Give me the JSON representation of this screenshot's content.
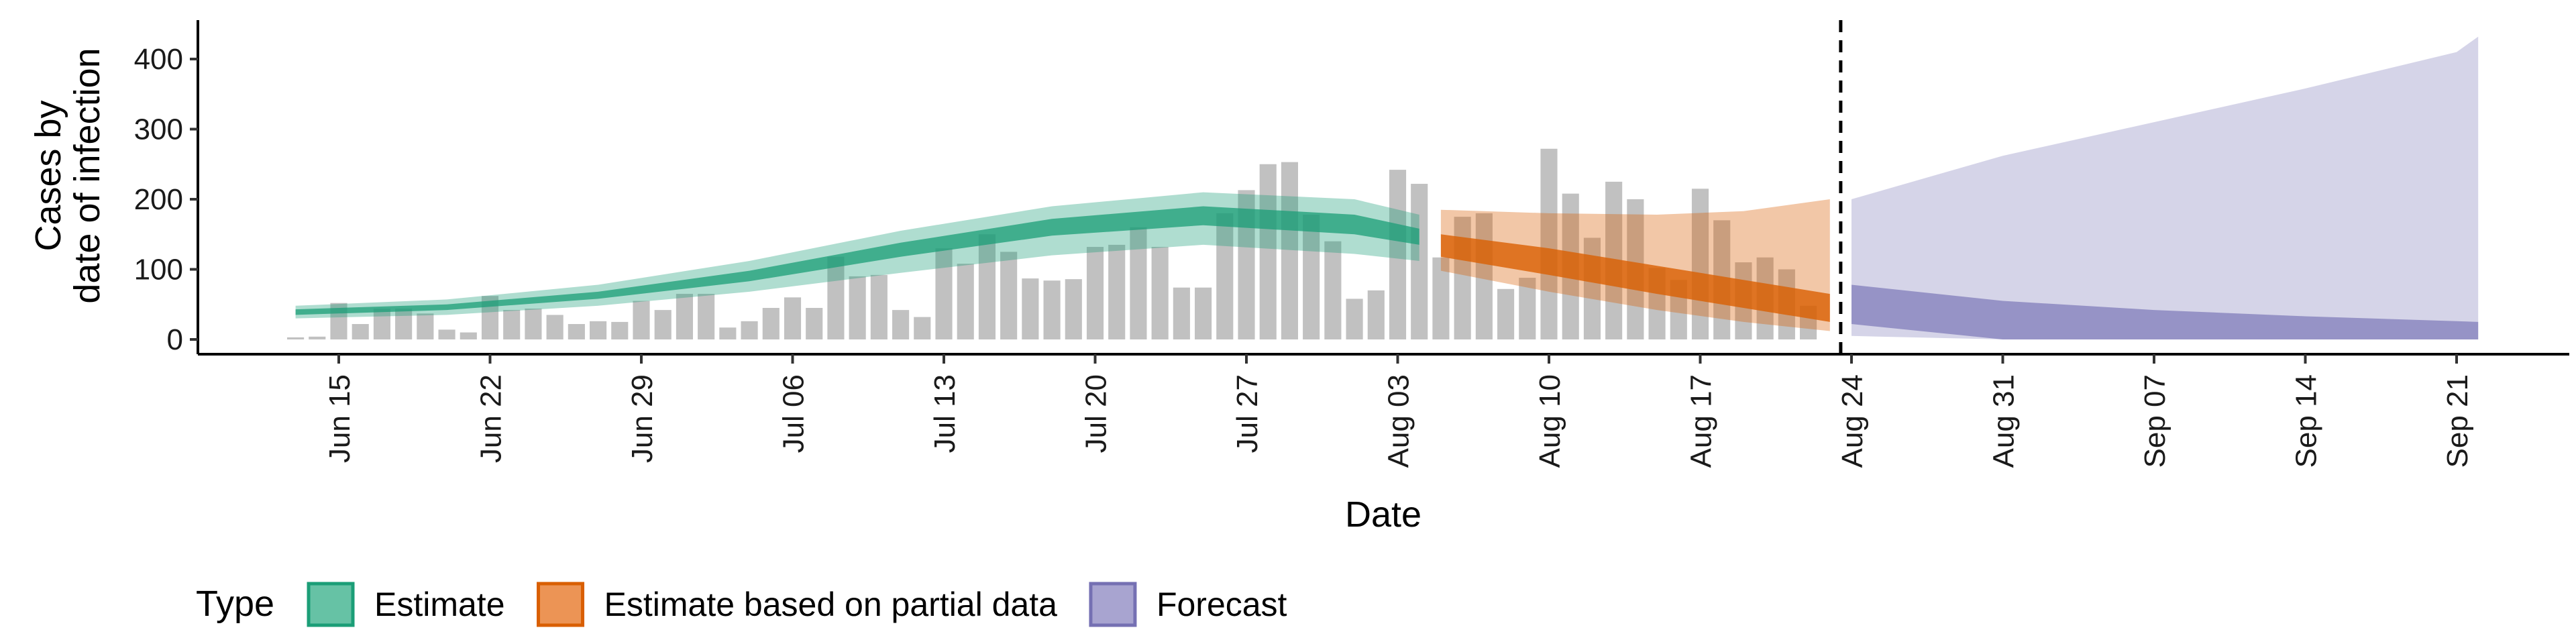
{
  "chart_data": {
    "type": "bar",
    "title": "",
    "xlabel": "Date",
    "ylabel_lines": [
      "Cases by",
      "date of infection"
    ],
    "x_range": [
      "2020-06-10",
      "2020-09-28"
    ],
    "ylim": [
      0,
      450
    ],
    "y_ticks": [
      0,
      100,
      200,
      300,
      400
    ],
    "x_ticks": [
      {
        "date": "2020-06-15",
        "label": "Jun 15"
      },
      {
        "date": "2020-06-22",
        "label": "Jun 22"
      },
      {
        "date": "2020-06-29",
        "label": "Jun 29"
      },
      {
        "date": "2020-07-06",
        "label": "Jul 06"
      },
      {
        "date": "2020-07-13",
        "label": "Jul 13"
      },
      {
        "date": "2020-07-20",
        "label": "Jul 20"
      },
      {
        "date": "2020-07-27",
        "label": "Jul 27"
      },
      {
        "date": "2020-08-03",
        "label": "Aug 03"
      },
      {
        "date": "2020-08-10",
        "label": "Aug 10"
      },
      {
        "date": "2020-08-17",
        "label": "Aug 17"
      },
      {
        "date": "2020-08-24",
        "label": "Aug 24"
      },
      {
        "date": "2020-08-31",
        "label": "Aug 31"
      },
      {
        "date": "2020-09-07",
        "label": "Sep 07"
      },
      {
        "date": "2020-09-14",
        "label": "Sep 14"
      },
      {
        "date": "2020-09-21",
        "label": "Sep 21"
      }
    ],
    "grid": false,
    "vline_date": "2020-08-23",
    "reported_cases": {
      "start_date": "2020-06-13",
      "color": "#a6a6a6",
      "values": [
        3,
        4,
        52,
        22,
        44,
        44,
        37,
        14,
        10,
        62,
        42,
        44,
        35,
        22,
        26,
        25,
        55,
        42,
        65,
        65,
        17,
        26,
        45,
        60,
        45,
        118,
        90,
        92,
        42,
        32,
        130,
        108,
        150,
        125,
        87,
        84,
        86,
        132,
        135,
        160,
        132,
        74,
        74,
        180,
        213,
        250,
        253,
        178,
        140,
        58,
        70,
        242,
        222,
        117,
        175,
        180,
        72,
        88,
        272,
        208,
        145,
        225,
        200,
        102,
        85,
        215,
        170,
        110,
        117,
        100,
        48
      ]
    },
    "series": [
      {
        "name": "Estimate",
        "color": "#1b9e77",
        "fill": "#66c2a5",
        "points": [
          {
            "date": "2020-06-13",
            "lo90": 30,
            "lo50": 35,
            "hi50": 43,
            "hi90": 48
          },
          {
            "date": "2020-06-20",
            "lo90": 35,
            "lo50": 42,
            "hi50": 50,
            "hi90": 57
          },
          {
            "date": "2020-06-27",
            "lo90": 48,
            "lo50": 58,
            "hi50": 68,
            "hi90": 78
          },
          {
            "date": "2020-07-04",
            "lo90": 68,
            "lo50": 83,
            "hi50": 98,
            "hi90": 112
          },
          {
            "date": "2020-07-11",
            "lo90": 95,
            "lo50": 118,
            "hi50": 138,
            "hi90": 155
          },
          {
            "date": "2020-07-18",
            "lo90": 120,
            "lo50": 148,
            "hi50": 172,
            "hi90": 190
          },
          {
            "date": "2020-07-25",
            "lo90": 135,
            "lo50": 163,
            "hi50": 190,
            "hi90": 210
          },
          {
            "date": "2020-08-01",
            "lo90": 122,
            "lo50": 150,
            "hi50": 178,
            "hi90": 200
          },
          {
            "date": "2020-08-04",
            "lo90": 112,
            "lo50": 135,
            "hi50": 158,
            "hi90": 178
          }
        ]
      },
      {
        "name": "Estimate based on partial data",
        "color": "#d95f02",
        "fill": "#fc8d62",
        "points": [
          {
            "date": "2020-08-05",
            "lo90": 98,
            "lo50": 118,
            "hi50": 150,
            "hi90": 185
          },
          {
            "date": "2020-08-10",
            "lo90": 68,
            "lo50": 92,
            "hi50": 130,
            "hi90": 180
          },
          {
            "date": "2020-08-15",
            "lo90": 42,
            "lo50": 65,
            "hi50": 105,
            "hi90": 178
          },
          {
            "date": "2020-08-19",
            "lo90": 25,
            "lo50": 45,
            "hi50": 85,
            "hi90": 183
          },
          {
            "date": "2020-08-23",
            "lo90": 12,
            "lo50": 25,
            "hi50": 65,
            "hi90": 200
          }
        ]
      },
      {
        "name": "Forecast",
        "color": "#7570b3",
        "fill": "#8da0cb",
        "points": [
          {
            "date": "2020-08-24",
            "lo90": 5,
            "lo50": 22,
            "hi50": 78,
            "hi90": 200
          },
          {
            "date": "2020-08-31",
            "lo90": 0,
            "lo50": 0,
            "hi50": 55,
            "hi90": 262
          },
          {
            "date": "2020-09-07",
            "lo90": 0,
            "lo50": 0,
            "hi50": 42,
            "hi90": 310
          },
          {
            "date": "2020-09-14",
            "lo90": 0,
            "lo50": 0,
            "hi50": 33,
            "hi90": 358
          },
          {
            "date": "2020-09-21",
            "lo90": 0,
            "lo50": 0,
            "hi50": 26,
            "hi90": 410
          },
          {
            "date": "2020-09-22",
            "lo90": 0,
            "lo50": 0,
            "hi50": 25,
            "hi90": 432
          }
        ]
      }
    ],
    "legend": {
      "title": "Type",
      "position": "bottom-left",
      "items": [
        {
          "label": "Estimate",
          "fill": "#66c2a5",
          "border": "#1b9e77"
        },
        {
          "label": "Estimate based on partial data",
          "fill": "#ec9455",
          "border": "#d95f02"
        },
        {
          "label": "Forecast",
          "fill": "#a8a4d0",
          "border": "#7570b3"
        }
      ]
    }
  }
}
